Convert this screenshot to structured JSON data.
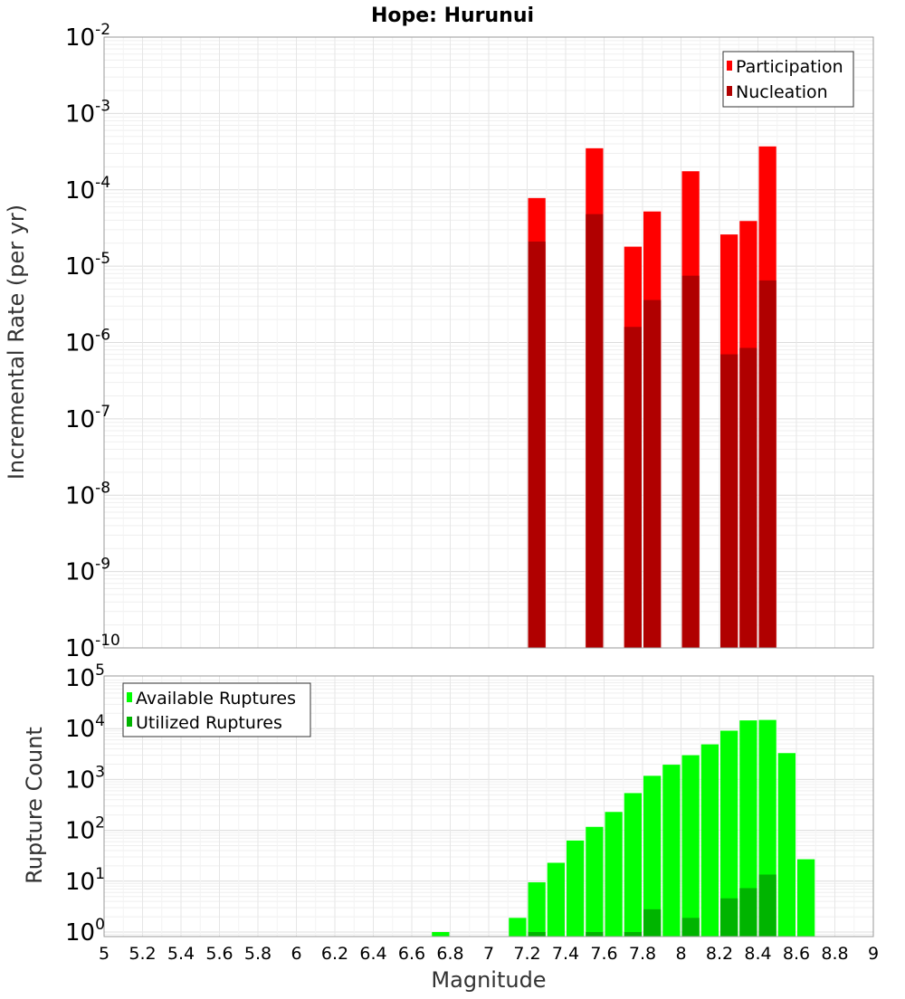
{
  "chart_data": [
    {
      "type": "bar",
      "title": "Hope: Hurunui",
      "xlabel": "",
      "ylabel": "Incremental Rate (per yr)",
      "yscale": "log",
      "ylim": [
        1e-10,
        0.01
      ],
      "xlim": [
        5,
        9
      ],
      "grid": true,
      "legend_position": "top-right",
      "colors": {
        "Participation": "#ff0000",
        "Nucleation": "#b00000"
      },
      "series": [
        {
          "name": "Participation",
          "x": [
            7.25,
            7.55,
            7.75,
            7.85,
            8.05,
            8.25,
            8.35,
            8.45
          ],
          "values": [
            7.8e-05,
            0.00035,
            1.8e-05,
            5.2e-05,
            0.000175,
            2.6e-05,
            3.9e-05,
            0.00037
          ]
        },
        {
          "name": "Nucleation",
          "x": [
            7.25,
            7.55,
            7.75,
            7.85,
            8.05,
            8.25,
            8.35,
            8.45
          ],
          "values": [
            2.1e-05,
            4.8e-05,
            1.6e-06,
            3.6e-06,
            7.5e-06,
            7e-07,
            8.5e-07,
            6.5e-06
          ]
        }
      ],
      "y_tick_labels": [
        {
          "base": "10",
          "exp": "-10"
        },
        {
          "base": "10",
          "exp": "-9"
        },
        {
          "base": "10",
          "exp": "-8"
        },
        {
          "base": "10",
          "exp": "-7"
        },
        {
          "base": "10",
          "exp": "-6"
        },
        {
          "base": "10",
          "exp": "-5"
        },
        {
          "base": "10",
          "exp": "-4"
        },
        {
          "base": "10",
          "exp": "-3"
        },
        {
          "base": "10",
          "exp": "-2"
        }
      ]
    },
    {
      "type": "bar",
      "title": "",
      "xlabel": "Magnitude",
      "ylabel": "Rupture Count",
      "yscale": "log",
      "ylim": [
        0.8,
        100000.0
      ],
      "xlim": [
        5,
        9
      ],
      "grid": true,
      "legend_position": "top-left",
      "colors": {
        "Available Ruptures": "#00ff00",
        "Utilized Ruptures": "#00b400"
      },
      "series": [
        {
          "name": "Available Ruptures",
          "x": [
            6.75,
            7.15,
            7.25,
            7.35,
            7.45,
            7.55,
            7.65,
            7.75,
            7.85,
            7.95,
            8.05,
            8.15,
            8.25,
            8.35,
            8.45,
            8.55,
            8.65
          ],
          "values": [
            1,
            1.9,
            9.5,
            23,
            63,
            117,
            230,
            540,
            1180,
            1950,
            3000,
            4900,
            9100,
            14500,
            14800,
            3300,
            27
          ]
        },
        {
          "name": "Utilized Ruptures",
          "x": [
            7.25,
            7.55,
            7.75,
            7.85,
            8.05,
            8.25,
            8.35,
            8.45
          ],
          "values": [
            1,
            1,
            1,
            2.8,
            1.9,
            4.6,
            7.3,
            13.5
          ]
        }
      ],
      "y_tick_labels": [
        {
          "base": "10",
          "exp": "0"
        },
        {
          "base": "10",
          "exp": "1"
        },
        {
          "base": "10",
          "exp": "2"
        },
        {
          "base": "10",
          "exp": "3"
        },
        {
          "base": "10",
          "exp": "4"
        },
        {
          "base": "10",
          "exp": "5"
        }
      ],
      "x_tick_labels": [
        "5",
        "5.2",
        "5.4",
        "5.6",
        "5.8",
        "6",
        "6.2",
        "6.4",
        "6.6",
        "6.8",
        "7",
        "7.2",
        "7.4",
        "7.6",
        "7.8",
        "8",
        "8.2",
        "8.4",
        "8.6",
        "8.8",
        "9"
      ]
    }
  ]
}
